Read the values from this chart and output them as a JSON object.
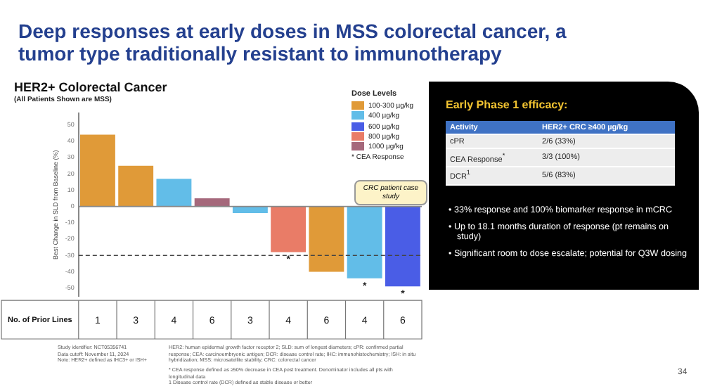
{
  "chart_data": [
    {
      "type": "bar",
      "title": "HER2+ Colorectal Cancer",
      "subtitle": "(All Patients Shown are MSS)",
      "xlabel": "No. of Prior Lines",
      "ylabel": "Best Change in SLD from Baseline (%)",
      "legend_title": "Dose Levels",
      "categories": [
        "1",
        "3",
        "4",
        "6",
        "3",
        "4",
        "6",
        "4",
        "6"
      ],
      "series": [
        {
          "name": "100-300 µg/kg",
          "color": "#e09a38",
          "values": [
            44,
            25,
            null,
            null,
            null,
            null,
            -40,
            null,
            null
          ],
          "value_labels": [
            null,
            null,
            null,
            null,
            null,
            null,
            null,
            null,
            null
          ]
        },
        {
          "name": "400 µg/kg",
          "color": "#62bde8",
          "values": [
            null,
            null,
            17,
            null,
            -4,
            null,
            null,
            -44,
            null
          ],
          "value_labels": [
            null,
            null,
            null,
            null,
            null,
            null,
            null,
            "*",
            null
          ]
        },
        {
          "name": "600 µg/kg",
          "color": "#4a5de6",
          "values": [
            null,
            null,
            null,
            null,
            null,
            null,
            null,
            null,
            -49
          ],
          "value_labels": [
            null,
            null,
            null,
            null,
            null,
            null,
            null,
            null,
            "*"
          ]
        },
        {
          "name": "800 µg/kg",
          "color": "#e97c67",
          "values": [
            null,
            null,
            null,
            null,
            null,
            -28,
            null,
            null,
            null
          ],
          "value_labels": [
            null,
            null,
            null,
            null,
            null,
            "*",
            null,
            null,
            null
          ]
        },
        {
          "name": "1000 µg/kg",
          "color": "#a5687b",
          "values": [
            null,
            null,
            null,
            5,
            null,
            null,
            null,
            null,
            null
          ],
          "value_labels": [
            null,
            null,
            null,
            null,
            null,
            null,
            null,
            null,
            null
          ]
        }
      ],
      "ylim": [
        -55,
        57
      ],
      "yticks": [
        -50,
        -40,
        -30,
        -20,
        -10,
        0,
        10,
        20,
        30,
        40,
        50
      ],
      "ref_lines": [
        {
          "axis": "y",
          "value": -30,
          "line_style": "dashed"
        }
      ],
      "legend": "top right",
      "grid": false,
      "annotations": [
        "Deep responses at early doses in MSS colorectal cancer, a tumor type traditionally resistant to immunotherapy",
        "CRC patient case study",
        "* CEA Response",
        "Study identifier: NCT05356741",
        "Data cutoff: November 11, 2024",
        "Note: HER2+ defined as IHC3+ or ISH+",
        "HER2: human epidermal growth factor receptor 2; SLD: sum of longest diameters; cPR: confirmed partial response; CEA: carcinoembryonic antigen; DCR: disease control rate; IHC: immunohistochemistry; ISH: in situ hybridization; MSS: microsatellite stability; CRC: colorectal cancer",
        "* CEA response defined as ≥50% decrease in CEA post treatment. Denominator includes all pts with longitudinal data",
        "1 Disease control rate (DCR) defined as stable disease or better"
      ]
    },
    {
      "type": "other",
      "title": "Early Phase 1 efficacy:",
      "annotations": [
        "Activity",
        "HER2+ CRC ≥400 µg/kg",
        "cPR",
        "2/6 (33%)",
        "CEA Response$^{*}$",
        "3/3 (100%)",
        "DCR$^{1}$",
        "5/6 (83%)",
        "• 33% response and 100% biomarker response in mCRC",
        "• Up to 18.1 months duration of response (pt remains on study)",
        "• Significant room to dose escalate; potential for Q3W dosing",
        "34"
      ]
    }
  ]
}
